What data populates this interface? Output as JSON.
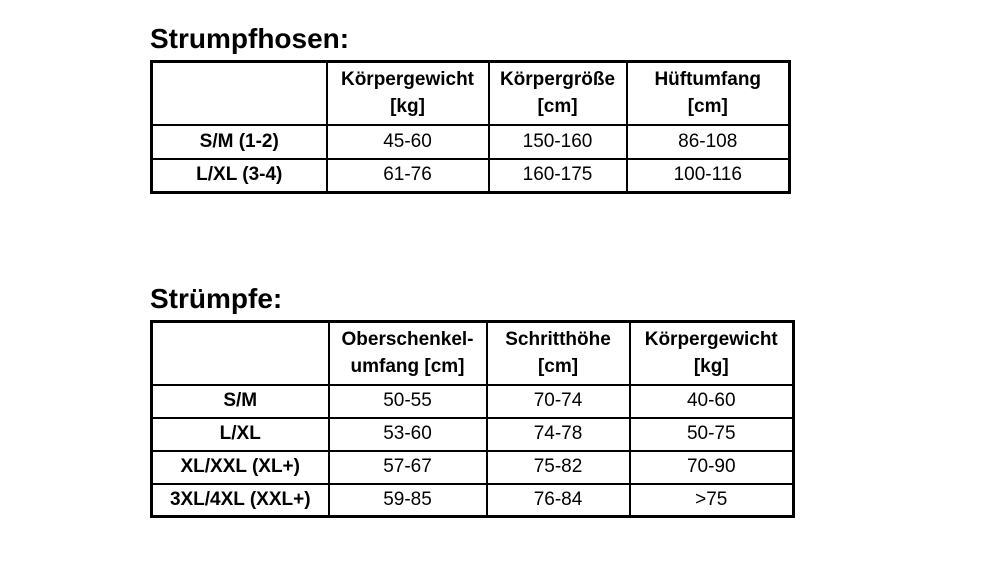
{
  "page": {
    "background": "#ffffff",
    "text_color": "#000000",
    "border_color": "#000000"
  },
  "tables": [
    {
      "title": "Strumpfhosen:",
      "headers": [
        {
          "line1": "",
          "line2": ""
        },
        {
          "line1": "Körpergewicht",
          "line2": "[kg]"
        },
        {
          "line1": "Körpergröße",
          "line2": "[cm]"
        },
        {
          "line1": "Hüftumfang",
          "line2": "[cm]"
        }
      ],
      "rows": [
        {
          "label": "S/M (1-2)",
          "values": [
            "45-60",
            "150-160",
            "86-108"
          ]
        },
        {
          "label": "L/XL (3-4)",
          "values": [
            "61-76",
            "160-175",
            "100-116"
          ]
        }
      ]
    },
    {
      "title": "Strümpfe:",
      "headers": [
        {
          "line1": "",
          "line2": ""
        },
        {
          "line1": "Oberschenkel-",
          "line2": "umfang [cm]"
        },
        {
          "line1": "Schritthöhe",
          "line2": "[cm]"
        },
        {
          "line1": "Körpergewicht",
          "line2": "[kg]"
        }
      ],
      "rows": [
        {
          "label": "S/M",
          "values": [
            "50-55",
            "70-74",
            "40-60"
          ]
        },
        {
          "label": "L/XL",
          "values": [
            "53-60",
            "74-78",
            "50-75"
          ]
        },
        {
          "label": "XL/XXL (XL+)",
          "values": [
            "57-67",
            "75-82",
            "70-90"
          ]
        },
        {
          "label": "3XL/4XL (XXL+)",
          "values": [
            "59-85",
            "76-84",
            "&gt;75"
          ]
        }
      ]
    }
  ]
}
